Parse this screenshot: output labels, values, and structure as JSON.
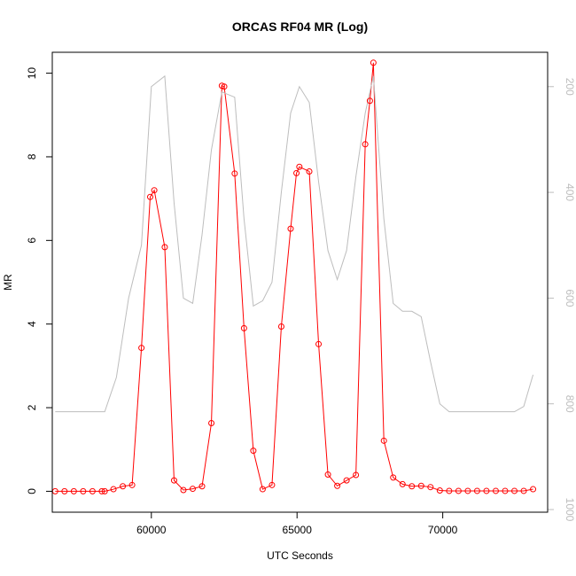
{
  "chart_data": {
    "type": "line",
    "title": "ORCAS RF04 MR (Log)",
    "xlabel": "UTC Seconds",
    "ylabel": "MR",
    "xlim": [
      56600,
      73600
    ],
    "ylim": [
      -0.5,
      10.5
    ],
    "x_ticks": [
      60000,
      65000,
      70000
    ],
    "y_ticks": [
      0,
      2,
      4,
      6,
      8,
      10
    ],
    "grid": false,
    "series": [
      {
        "axis": "left",
        "color": "#ff0000",
        "markers": "open-circle",
        "x": [
          56700,
          57020,
          57340,
          57660,
          57980,
          58300,
          58400,
          58700,
          59020,
          59340,
          59660,
          59960,
          60100,
          60460,
          60780,
          61100,
          61420,
          61740,
          62060,
          62420,
          62500,
          62860,
          63180,
          63500,
          63820,
          64140,
          64460,
          64780,
          64980,
          65080,
          65420,
          65740,
          66060,
          66380,
          66700,
          67020,
          67340,
          67500,
          67620,
          67980,
          68300,
          68620,
          68940,
          69260,
          69580,
          69900,
          70220,
          70540,
          70860,
          71180,
          71500,
          71820,
          72140,
          72460,
          72780,
          73100
        ],
        "y": [
          0.0,
          0.0,
          0.0,
          0.0,
          0.0,
          0.0,
          0.0,
          0.05,
          0.12,
          0.15,
          3.43,
          7.04,
          7.2,
          5.84,
          0.26,
          0.03,
          0.06,
          0.12,
          1.63,
          9.7,
          9.68,
          7.6,
          3.9,
          0.97,
          0.05,
          0.15,
          3.94,
          6.28,
          7.61,
          7.76,
          7.65,
          3.52,
          0.4,
          0.13,
          0.26,
          0.39,
          8.3,
          9.34,
          10.25,
          1.21,
          0.33,
          0.17,
          0.12,
          0.13,
          0.1,
          0.02,
          0.01,
          0.01,
          0.01,
          0.01,
          0.01,
          0.01,
          0.01,
          0.01,
          0.01,
          0.05
        ]
      },
      {
        "axis": "right",
        "color": "#bdbdbd",
        "markers": "none",
        "x": [
          56700,
          58400,
          58800,
          59220,
          59660,
          60000,
          60460,
          60780,
          61100,
          61420,
          61740,
          62060,
          62420,
          62860,
          63180,
          63500,
          63820,
          64140,
          64460,
          64780,
          65080,
          65420,
          65740,
          66060,
          66380,
          66700,
          67020,
          67340,
          67620,
          67980,
          68300,
          68620,
          68940,
          69260,
          69580,
          69900,
          70220,
          70540,
          72460,
          72780,
          73100
        ],
        "y": [
          815,
          815,
          750,
          600,
          500,
          200,
          180,
          420,
          600,
          610,
          480,
          320,
          210,
          220,
          450,
          615,
          605,
          570,
          400,
          250,
          200,
          230,
          380,
          510,
          565,
          510,
          370,
          250,
          180,
          450,
          610,
          625,
          625,
          635,
          720,
          800,
          815,
          815,
          815,
          805,
          745
        ]
      }
    ],
    "right_axis": {
      "ylim": [
        1005,
        135
      ],
      "ticks": [
        200,
        400,
        600,
        800,
        1000
      ]
    }
  }
}
